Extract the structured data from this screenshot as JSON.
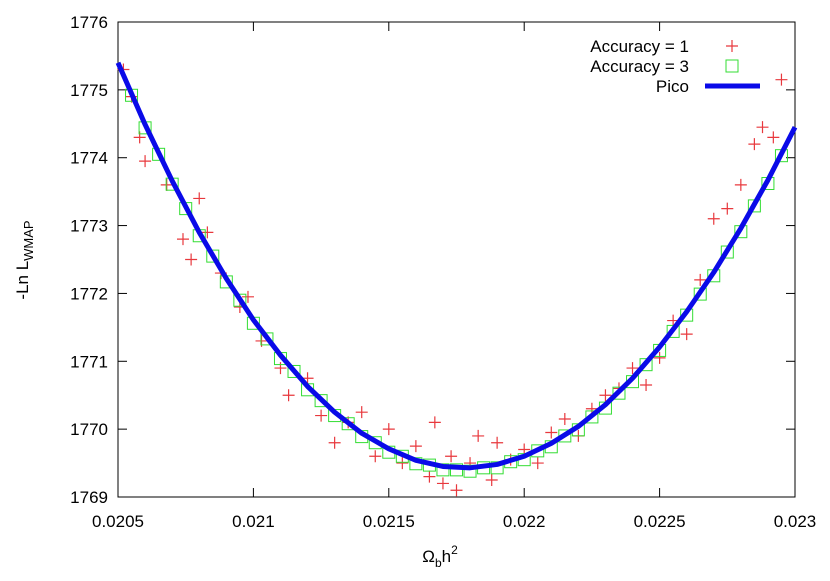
{
  "chart_data": {
    "type": "scatter",
    "xlabel_parts": [
      "Ω",
      "b",
      "h",
      "2"
    ],
    "ylabel_parts": [
      "-Ln L",
      "WMAP"
    ],
    "xlim": [
      0.0205,
      0.023
    ],
    "ylim": [
      1769,
      1776
    ],
    "xticks": [
      0.0205,
      0.021,
      0.0215,
      0.022,
      0.0225,
      0.023
    ],
    "yticks": [
      1769,
      1770,
      1771,
      1772,
      1773,
      1774,
      1775,
      1776
    ],
    "legend": "top-right",
    "series": [
      {
        "name": "Accuracy = 1",
        "color": "#e8383d",
        "marker": "plus",
        "x": [
          0.02052,
          0.02055,
          0.02058,
          0.0206,
          0.02068,
          0.02074,
          0.02077,
          0.0208,
          0.02083,
          0.02088,
          0.02095,
          0.02098,
          0.02103,
          0.0211,
          0.02113,
          0.0212,
          0.02125,
          0.0213,
          0.02135,
          0.0214,
          0.02145,
          0.0215,
          0.02155,
          0.0216,
          0.02165,
          0.02167,
          0.0217,
          0.02173,
          0.02175,
          0.0218,
          0.02183,
          0.02188,
          0.0219,
          0.02195,
          0.022,
          0.02205,
          0.0221,
          0.02215,
          0.0222,
          0.02225,
          0.0223,
          0.02235,
          0.0224,
          0.02245,
          0.0225,
          0.02255,
          0.0226,
          0.02265,
          0.0227,
          0.02275,
          0.0228,
          0.02285,
          0.02288,
          0.02292,
          0.02295
        ],
        "values": [
          1775.3,
          1774.9,
          1774.3,
          1773.95,
          1773.6,
          1772.8,
          1772.5,
          1773.4,
          1772.9,
          1772.3,
          1771.8,
          1771.95,
          1771.3,
          1770.9,
          1770.5,
          1770.75,
          1770.2,
          1769.8,
          1770.1,
          1770.25,
          1769.6,
          1770.0,
          1769.5,
          1769.75,
          1769.3,
          1770.1,
          1769.2,
          1769.6,
          1769.1,
          1769.5,
          1769.9,
          1769.25,
          1769.8,
          1769.55,
          1769.7,
          1769.5,
          1769.95,
          1770.15,
          1769.9,
          1770.3,
          1770.5,
          1770.6,
          1770.9,
          1770.65,
          1771.05,
          1771.6,
          1771.4,
          1772.2,
          1773.1,
          1773.25,
          1773.6,
          1774.2,
          1774.45,
          1774.3,
          1775.15
        ]
      },
      {
        "name": "Accuracy = 3",
        "color": "#33dd33",
        "marker": "square",
        "x": [
          0.02055,
          0.02065,
          0.02075,
          0.02085,
          0.02095,
          0.02105,
          0.02115,
          0.02125,
          0.02135,
          0.02145,
          0.02155,
          0.02165,
          0.02175,
          0.02185,
          0.02195,
          0.02205,
          0.02215,
          0.02225,
          0.02235,
          0.02245,
          0.02255,
          0.02265,
          0.02275,
          0.02285,
          0.02295,
          0.0206,
          0.0207,
          0.0208,
          0.0209,
          0.021,
          0.0211,
          0.0212,
          0.0213,
          0.0214,
          0.0215,
          0.0216,
          0.0217,
          0.0218,
          0.0219,
          0.022,
          0.0221,
          0.0222,
          0.0223,
          0.0224,
          0.0225,
          0.0226,
          0.0227,
          0.0228,
          0.0229
        ],
        "values": [
          1774.92,
          1774.05,
          1773.25,
          1772.55,
          1771.9,
          1771.33,
          1770.85,
          1770.42,
          1770.08,
          1769.8,
          1769.6,
          1769.47,
          1769.4,
          1769.43,
          1769.52,
          1769.68,
          1769.9,
          1770.18,
          1770.53,
          1770.95,
          1771.44,
          1771.99,
          1772.61,
          1773.29,
          1774.03,
          1774.44,
          1773.61,
          1772.85,
          1772.17,
          1771.56,
          1771.04,
          1770.58,
          1770.2,
          1769.89,
          1769.66,
          1769.49,
          1769.4,
          1769.38,
          1769.43,
          1769.55,
          1769.74,
          1769.99,
          1770.31,
          1770.7,
          1771.16,
          1771.68,
          1772.26,
          1772.91,
          1773.62
        ]
      },
      {
        "name": "Pico",
        "color": "#0a0ae8",
        "marker": "line",
        "x": [
          0.0205,
          0.0206,
          0.0207,
          0.0208,
          0.0209,
          0.021,
          0.0211,
          0.0212,
          0.0213,
          0.0214,
          0.0215,
          0.0216,
          0.0217,
          0.0218,
          0.0219,
          0.022,
          0.0221,
          0.0222,
          0.0223,
          0.0224,
          0.0225,
          0.0226,
          0.0227,
          0.0228,
          0.0229,
          0.023
        ],
        "values": [
          1775.4,
          1774.49,
          1773.66,
          1772.9,
          1772.22,
          1771.61,
          1771.09,
          1770.63,
          1770.25,
          1769.94,
          1769.71,
          1769.54,
          1769.45,
          1769.43,
          1769.48,
          1769.6,
          1769.79,
          1770.04,
          1770.36,
          1770.75,
          1771.21,
          1771.73,
          1772.31,
          1772.96,
          1773.67,
          1774.45
        ]
      }
    ]
  }
}
